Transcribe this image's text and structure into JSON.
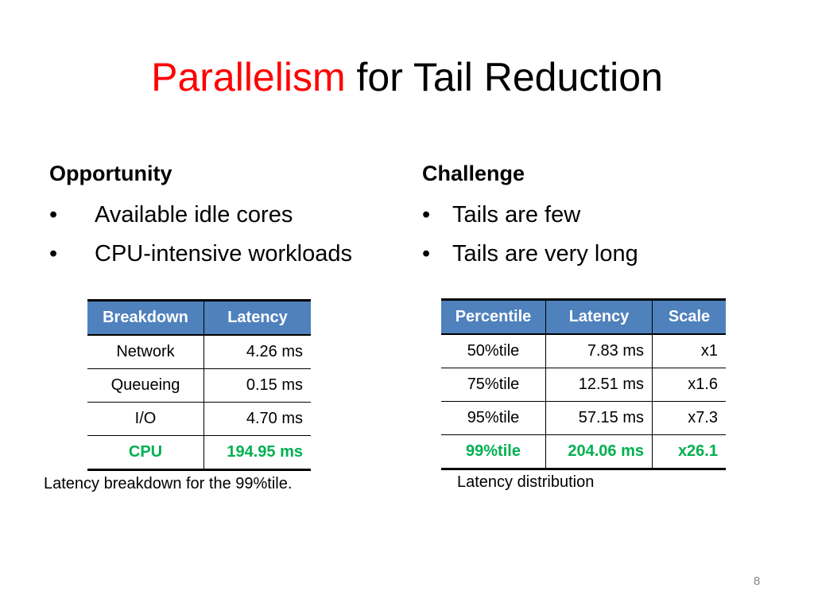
{
  "slide": {
    "title_highlight": "Parallelism",
    "title_rest": " for Tail Reduction",
    "page_number": "8"
  },
  "opportunity": {
    "heading": "Opportunity",
    "bullets": [
      "Available idle cores",
      "CPU-intensive workloads"
    ]
  },
  "challenge": {
    "heading": "Challenge",
    "bullets": [
      "Tails are few",
      "Tails are very long"
    ]
  },
  "breakdown_table": {
    "headers": [
      "Breakdown",
      "Latency"
    ],
    "rows": [
      [
        "Network",
        "4.26 ms"
      ],
      [
        "Queueing",
        "0.15 ms"
      ],
      [
        "I/O",
        "4.70 ms"
      ],
      [
        "CPU",
        "194.95 ms"
      ]
    ],
    "caption": "Latency breakdown for the 99%tile."
  },
  "distribution_table": {
    "headers": [
      "Percentile",
      "Latency",
      "Scale"
    ],
    "rows": [
      [
        "50%tile",
        "7.83 ms",
        "x1"
      ],
      [
        "75%tile",
        "12.51 ms",
        "x1.6"
      ],
      [
        "95%tile",
        "57.15 ms",
        "x7.3"
      ],
      [
        "99%tile",
        "204.06 ms",
        "x26.1"
      ]
    ],
    "caption": "Latency distribution"
  },
  "colors": {
    "title_highlight": "#ff0000",
    "header_fill": "#4f81bd",
    "emphasis_row": "#00b050"
  },
  "bullet_glyph": "•"
}
